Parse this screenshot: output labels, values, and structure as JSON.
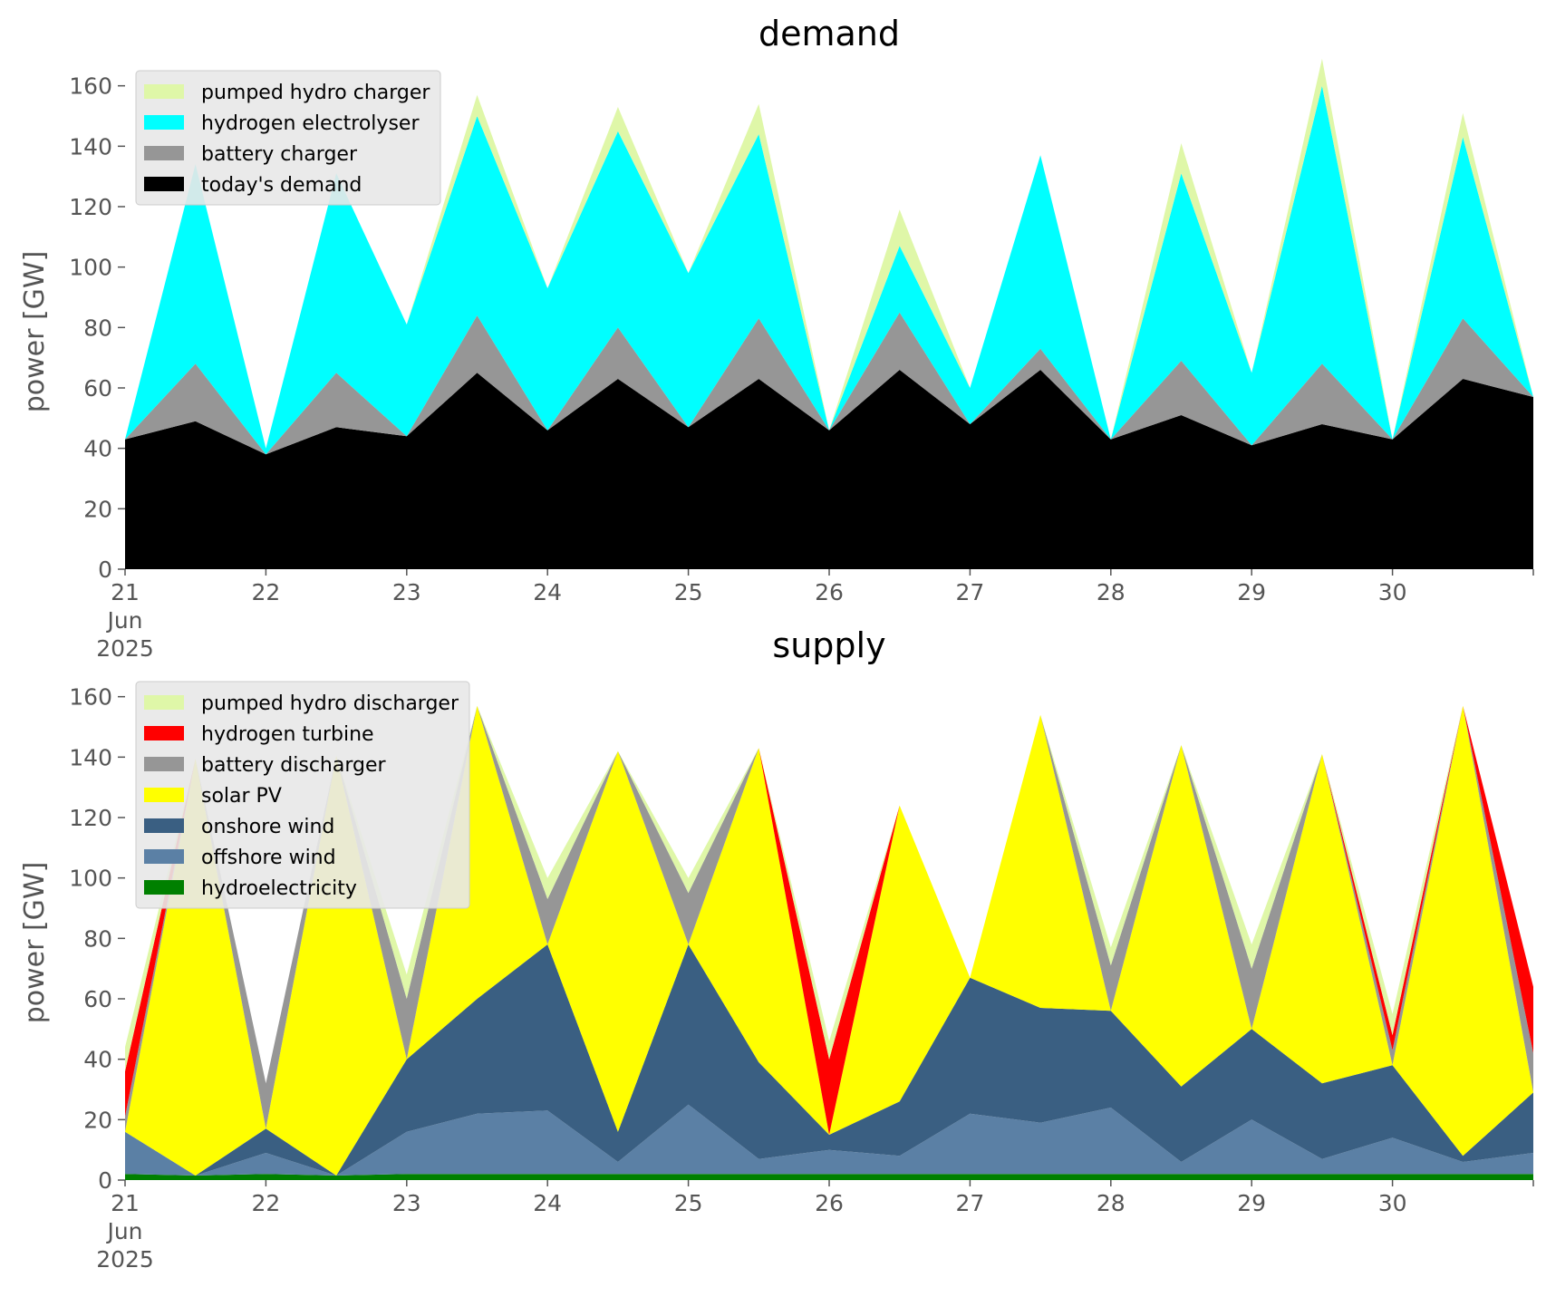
{
  "chart_data": [
    {
      "type": "area",
      "stacked": true,
      "title": "demand",
      "xlabel": "",
      "ylabel": "power [GW]",
      "ylim": [
        0,
        165
      ],
      "yticks": [
        "0",
        "20",
        "40",
        "60",
        "80",
        "100",
        "120",
        "140",
        "160"
      ],
      "xlim": [
        0,
        10
      ],
      "xticks": [
        {
          "x": 0,
          "label": "21"
        },
        {
          "x": 1,
          "label": "22"
        },
        {
          "x": 2,
          "label": "23"
        },
        {
          "x": 3,
          "label": "24"
        },
        {
          "x": 4,
          "label": "25"
        },
        {
          "x": 5,
          "label": "26"
        },
        {
          "x": 6,
          "label": "27"
        },
        {
          "x": 7,
          "label": "28"
        },
        {
          "x": 8,
          "label": "29"
        },
        {
          "x": 9,
          "label": "30"
        }
      ],
      "xtick_sublabels": [
        "Jun",
        "2025"
      ],
      "x_unit": "days from 21 Jun 2025",
      "legend_position": "top-left",
      "x": [
        0,
        0.5,
        1,
        1.5,
        2,
        2.5,
        3,
        3.5,
        4,
        4.5,
        5,
        5.5,
        6,
        6.5,
        7,
        7.5,
        8,
        8.5,
        9,
        9.5,
        10
      ],
      "series": [
        {
          "name": "today's demand",
          "color": "#000000",
          "values": [
            43,
            49,
            38,
            47,
            44,
            65,
            46,
            63,
            47,
            63,
            46,
            66,
            48,
            66,
            43,
            51,
            41,
            48,
            43,
            63,
            57
          ]
        },
        {
          "name": "battery charger",
          "color": "#969696",
          "values": [
            0,
            19,
            0,
            18,
            0,
            19,
            0,
            17,
            0,
            20,
            0,
            19,
            0,
            7,
            0,
            18,
            0,
            20,
            0,
            20,
            0
          ]
        },
        {
          "name": "hydrogen electrolyser",
          "color": "#00ffff",
          "values": [
            0,
            66,
            2,
            66,
            37,
            66,
            47,
            65,
            51,
            61,
            0,
            22,
            12,
            64,
            0,
            62,
            24,
            92,
            0,
            60,
            0
          ]
        },
        {
          "name": "pumped hydro charger",
          "color": "#dff7a8",
          "values": [
            0,
            0,
            0,
            0,
            0,
            7,
            0,
            8,
            0,
            10,
            0,
            12,
            0,
            0,
            0,
            10,
            0,
            9,
            0,
            8,
            0
          ]
        }
      ]
    },
    {
      "type": "area",
      "stacked": true,
      "title": "supply",
      "xlabel": "",
      "ylabel": "power [GW]",
      "ylim": [
        0,
        165
      ],
      "yticks": [
        "0",
        "20",
        "40",
        "60",
        "80",
        "100",
        "120",
        "140",
        "160"
      ],
      "xlim": [
        0,
        10
      ],
      "xticks": [
        {
          "x": 0,
          "label": "21"
        },
        {
          "x": 1,
          "label": "22"
        },
        {
          "x": 2,
          "label": "23"
        },
        {
          "x": 3,
          "label": "24"
        },
        {
          "x": 4,
          "label": "25"
        },
        {
          "x": 5,
          "label": "26"
        },
        {
          "x": 6,
          "label": "27"
        },
        {
          "x": 7,
          "label": "28"
        },
        {
          "x": 8,
          "label": "29"
        },
        {
          "x": 9,
          "label": "30"
        }
      ],
      "xtick_sublabels": [
        "Jun",
        "2025"
      ],
      "x_unit": "days from 21 Jun 2025",
      "legend_position": "top-left",
      "x": [
        0,
        0.5,
        1,
        1.5,
        2,
        2.5,
        3,
        3.5,
        4,
        4.5,
        5,
        5.5,
        6,
        6.5,
        7,
        7.5,
        8,
        8.5,
        9,
        9.5,
        10
      ],
      "series": [
        {
          "name": "hydroelectricity",
          "color": "#008000",
          "values": [
            2,
            1.5,
            2,
            1.5,
            2,
            2,
            2,
            2,
            2,
            2,
            2,
            2,
            2,
            2,
            2,
            2,
            2,
            2,
            2,
            2,
            2
          ]
        },
        {
          "name": "offshore wind",
          "color": "#5b80a5",
          "values": [
            14,
            0,
            7,
            0,
            14,
            20,
            21,
            4,
            23,
            5,
            8,
            6,
            20,
            17,
            22,
            4,
            18,
            5,
            12,
            4,
            7
          ]
        },
        {
          "name": "onshore wind",
          "color": "#3a5f82",
          "values": [
            0,
            0,
            8,
            0,
            24,
            38,
            55,
            10,
            53,
            32,
            5,
            18,
            45,
            38,
            32,
            25,
            30,
            25,
            24,
            2,
            20
          ]
        },
        {
          "name": "solar PV",
          "color": "#ffff00",
          "values": [
            0,
            138,
            0,
            139,
            0,
            97,
            0,
            126,
            0,
            104,
            0,
            98,
            0,
            97,
            0,
            113,
            0,
            109,
            0,
            149,
            0
          ]
        },
        {
          "name": "battery discharger",
          "color": "#969696",
          "values": [
            5,
            0,
            15,
            0,
            20,
            0,
            15,
            0,
            17,
            0,
            0,
            0,
            0,
            0,
            15,
            0,
            20,
            0,
            5,
            0,
            13
          ]
        },
        {
          "name": "hydrogen turbine",
          "color": "#ff0000",
          "values": [
            15,
            0,
            0,
            0,
            0,
            0,
            0,
            0,
            0,
            0,
            25,
            0,
            0,
            0,
            0,
            0,
            0,
            0,
            5,
            0,
            22
          ]
        },
        {
          "name": "pumped hydro discharger",
          "color": "#dff7a8",
          "values": [
            8,
            0,
            0,
            0,
            8,
            0,
            7,
            0,
            5,
            0,
            6,
            0,
            0,
            0,
            6,
            0,
            8,
            0,
            7,
            0,
            0
          ]
        }
      ]
    }
  ]
}
